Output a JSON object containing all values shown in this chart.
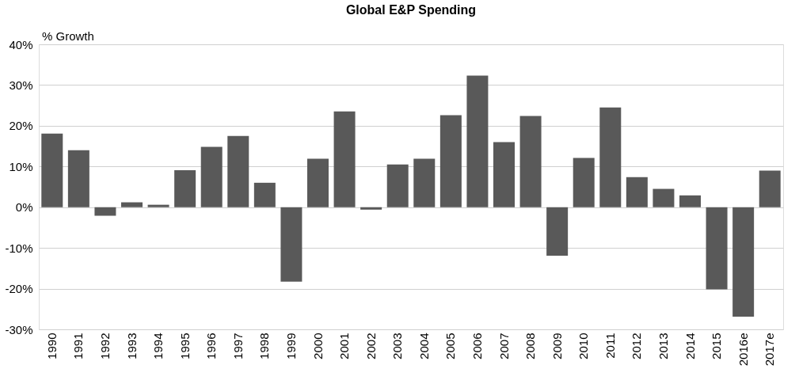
{
  "chart_data": {
    "type": "bar",
    "title": "Global E&P Spending",
    "ylabel": "% Growth",
    "categories": [
      "1990",
      "1991",
      "1992",
      "1993",
      "1994",
      "1995",
      "1996",
      "1997",
      "1998",
      "1999",
      "2000",
      "2001",
      "2002",
      "2003",
      "2004",
      "2005",
      "2006",
      "2007",
      "2008",
      "2009",
      "2010",
      "2011",
      "2012",
      "2013",
      "2014",
      "2015",
      "2016e",
      "2017e"
    ],
    "values": [
      18.1,
      14.0,
      -2.1,
      1.2,
      0.6,
      9.1,
      14.8,
      17.5,
      6.0,
      -18.3,
      11.9,
      23.5,
      -0.6,
      10.5,
      11.9,
      22.6,
      32.3,
      16.0,
      22.4,
      -11.9,
      12.1,
      24.5,
      7.4,
      4.5,
      2.9,
      -20.2,
      -26.9,
      9.0
    ],
    "color": "#595959",
    "ylim": [
      -30,
      40
    ],
    "yticks": [
      {
        "value": -30,
        "label": "-30%"
      },
      {
        "value": -20,
        "label": "-20%"
      },
      {
        "value": -10,
        "label": "-10%"
      },
      {
        "value": 0,
        "label": "0%"
      },
      {
        "value": 10,
        "label": "10%"
      },
      {
        "value": 20,
        "label": "20%"
      },
      {
        "value": 30,
        "label": "30%"
      },
      {
        "value": 40,
        "label": "40%"
      }
    ],
    "grid": "y"
  }
}
